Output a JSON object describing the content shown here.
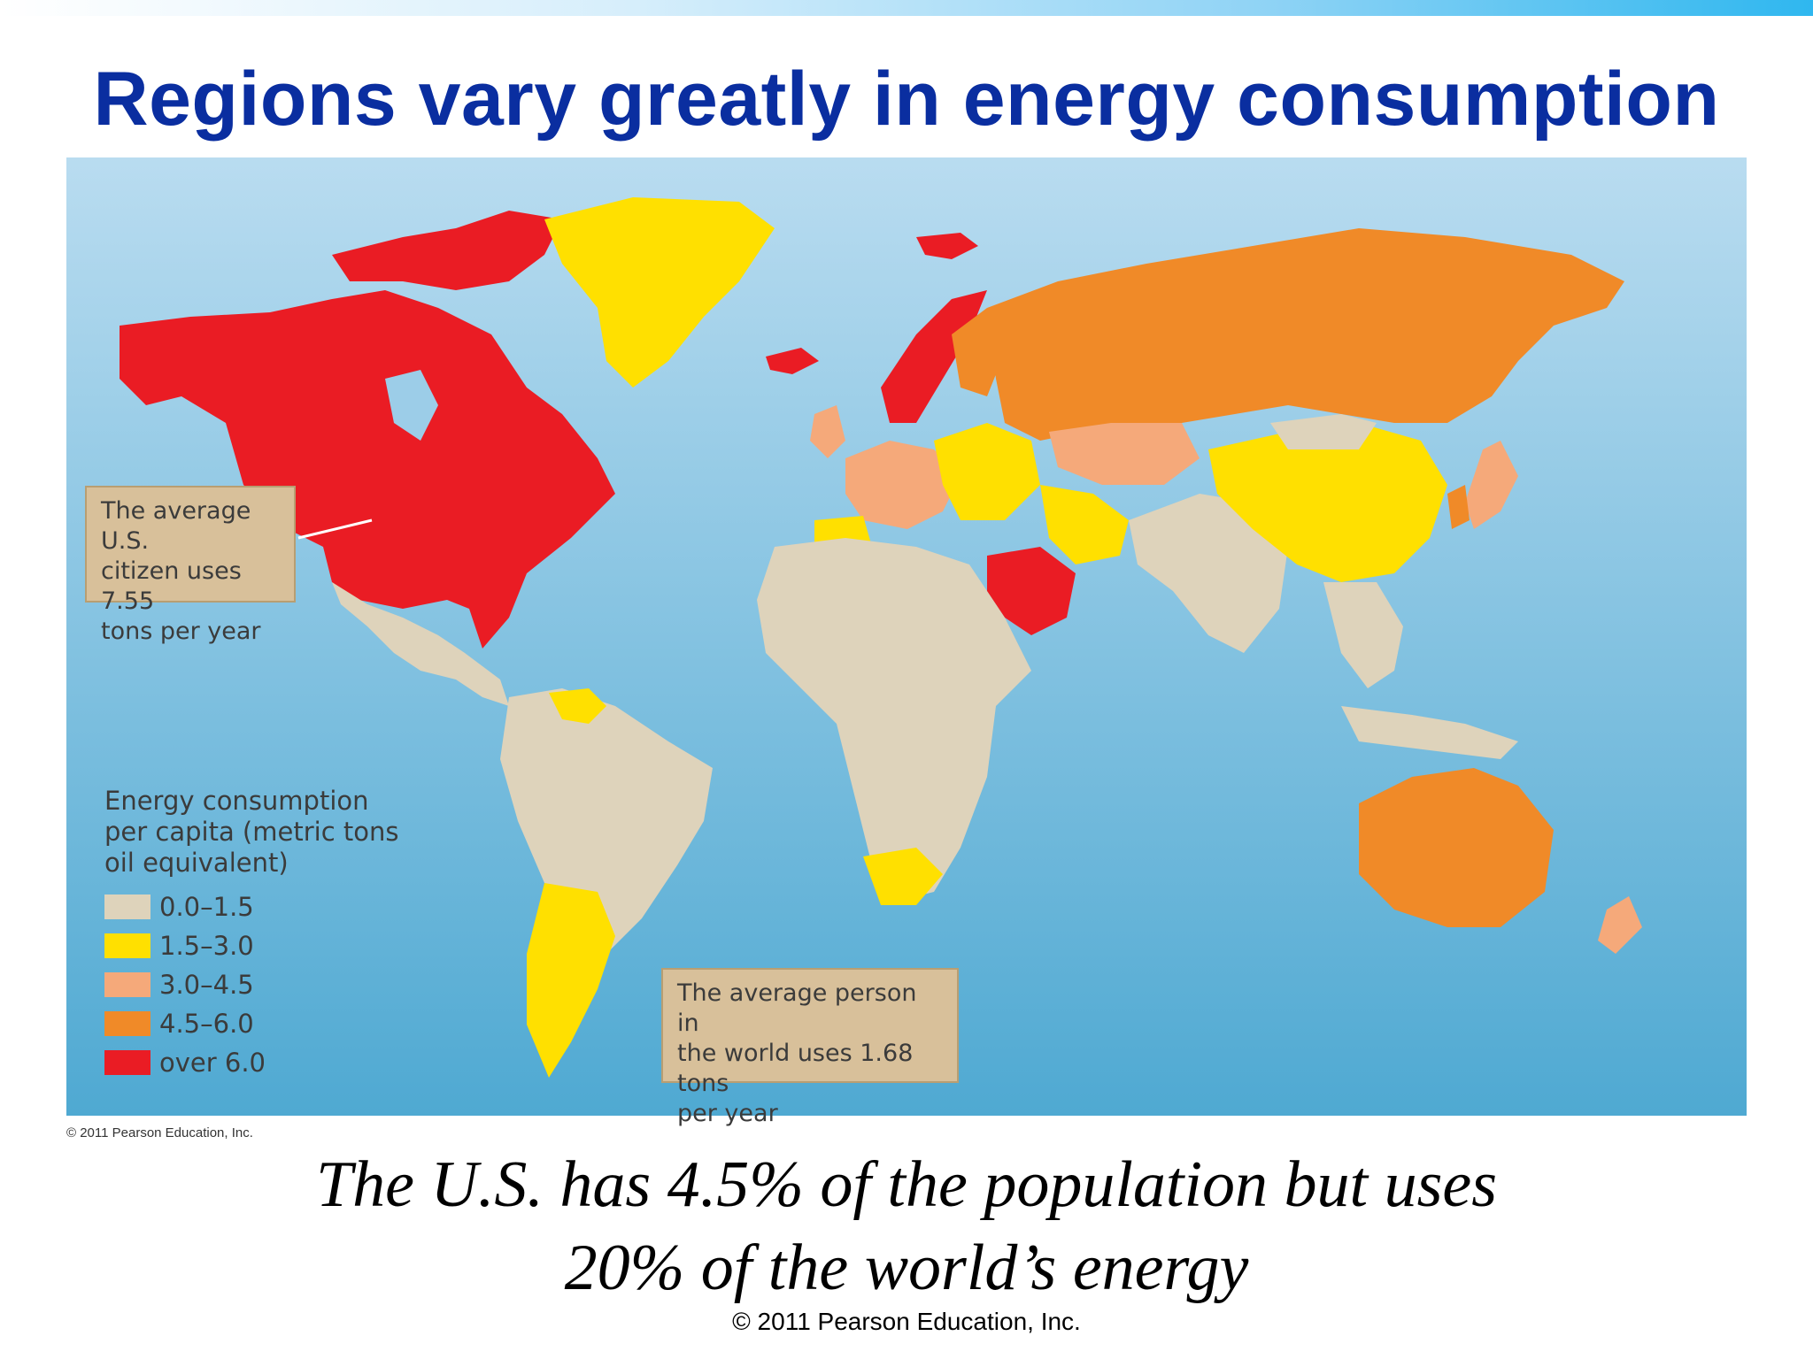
{
  "slide": {
    "title": "Regions vary greatly in energy consumption",
    "caption_line1": "The U.S. has 4.5% of the population but uses",
    "caption_line2": "20% of the world’s energy",
    "footer_credit": "© 2011 Pearson Education, Inc."
  },
  "map": {
    "credit": "© 2011 Pearson Education, Inc.",
    "callout_us": [
      "The average U.S.",
      "citizen uses 7.55",
      "tons per year"
    ],
    "callout_world": [
      "The average person in",
      "the world uses 1.68 tons",
      "per year"
    ],
    "legend": {
      "title": "Energy consumption\nper capita (metric tons\noil equivalent)",
      "items": [
        {
          "label": "0.0–1.5",
          "color": "#ded3bb"
        },
        {
          "label": "1.5–3.0",
          "color": "#ffe000"
        },
        {
          "label": "3.0–4.5",
          "color": "#f5a97a"
        },
        {
          "label": "4.5–6.0",
          "color": "#f08a28"
        },
        {
          "label": "over 6.0",
          "color": "#ea1c24"
        }
      ]
    },
    "colors": {
      "ocean_top": "#b9dcf0",
      "ocean_bottom": "#4fa9d2"
    }
  }
}
